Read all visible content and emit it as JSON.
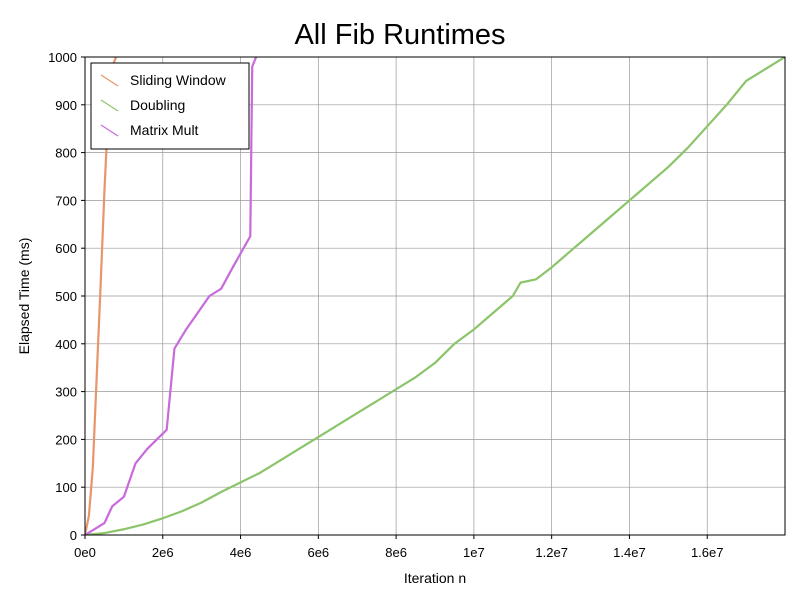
{
  "chart_data": {
    "type": "line",
    "title": "All Fib Runtimes",
    "xlabel": "Iteration n",
    "ylabel": "Elapsed Time (ms)",
    "xlim": [
      0,
      18000000
    ],
    "ylim": [
      0,
      1000
    ],
    "x_ticks": [
      0,
      2000000,
      4000000,
      6000000,
      8000000,
      10000000,
      12000000,
      14000000,
      16000000
    ],
    "x_tick_labels": [
      "0e0",
      "2e6",
      "4e6",
      "6e6",
      "8e6",
      "1e7",
      "1.2e7",
      "1.4e7",
      "1.6e7"
    ],
    "y_ticks": [
      0,
      100,
      200,
      300,
      400,
      500,
      600,
      700,
      800,
      900,
      1000
    ],
    "y_tick_labels": [
      "0",
      "100",
      "200",
      "300",
      "400",
      "500",
      "600",
      "700",
      "800",
      "900",
      "1000"
    ],
    "grid": true,
    "legend_position": "top-left",
    "series": [
      {
        "name": "Sliding Window",
        "color": "#E8956A",
        "x": [
          0,
          100000,
          200000,
          300000,
          400000,
          500000,
          600000,
          700000,
          800000
        ],
        "y": [
          0,
          40,
          140,
          330,
          520,
          720,
          890,
          980,
          1000
        ]
      },
      {
        "name": "Doubling",
        "color": "#8BC46A",
        "x": [
          0,
          500000,
          1000000,
          1500000,
          2000000,
          2500000,
          3000000,
          3500000,
          4000000,
          4500000,
          5000000,
          5500000,
          6000000,
          6500000,
          7000000,
          7500000,
          8000000,
          8500000,
          9000000,
          9500000,
          10000000,
          10500000,
          11000000,
          11200000,
          11600000,
          12000000,
          12500000,
          13000000,
          13500000,
          14000000,
          14500000,
          15000000,
          15500000,
          16000000,
          16500000,
          17000000,
          17500000,
          18000000
        ],
        "y": [
          0,
          4,
          12,
          22,
          35,
          50,
          68,
          90,
          110,
          130,
          155,
          180,
          205,
          230,
          255,
          280,
          305,
          330,
          360,
          400,
          430,
          465,
          500,
          528,
          535,
          560,
          595,
          630,
          665,
          700,
          735,
          770,
          810,
          855,
          900,
          950,
          975,
          1000
        ]
      },
      {
        "name": "Matrix Mult",
        "color": "#C86ADC",
        "x": [
          0,
          500000,
          700000,
          1000000,
          1300000,
          1600000,
          2100000,
          2300000,
          2600000,
          3200000,
          3500000,
          3800000,
          4250000,
          4300000,
          4350000,
          4400000
        ],
        "y": [
          0,
          25,
          60,
          80,
          150,
          180,
          220,
          390,
          430,
          500,
          515,
          560,
          625,
          980,
          990,
          1000
        ]
      }
    ]
  }
}
